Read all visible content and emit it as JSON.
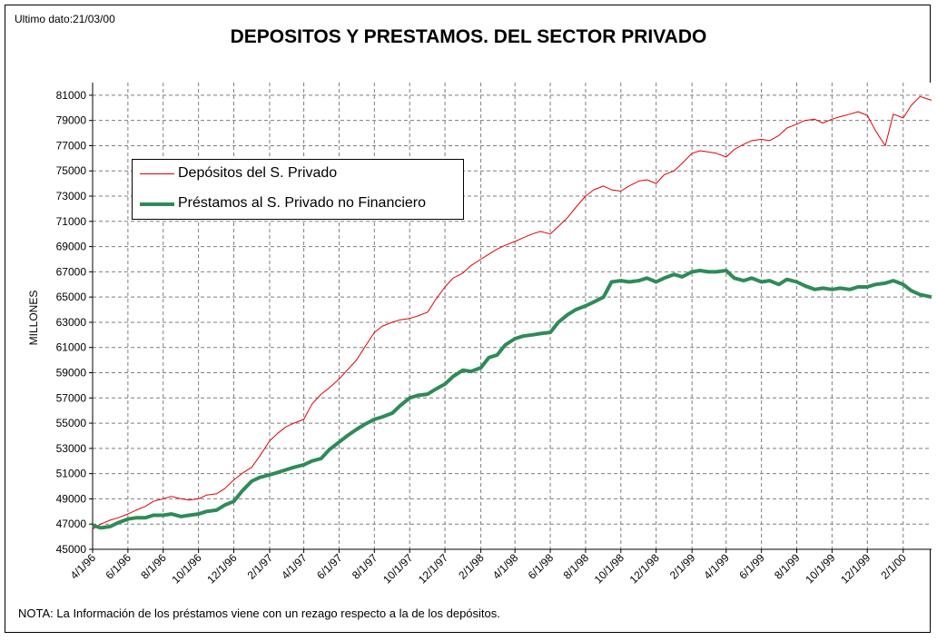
{
  "header": {
    "last_data": "Ultimo dato:21/03/00",
    "title": "DEPOSITOS Y PRESTAMOS. DEL SECTOR PRIVADO"
  },
  "footnote": "NOTA: La Información de los préstamos viene con un rezago respecto a la de los depósitos.",
  "chart_data": {
    "type": "line",
    "title": "DEPOSITOS Y PRESTAMOS. DEL SECTOR PRIVADO",
    "ylabel": "MILLONES",
    "xlabel": "",
    "ylim": [
      45000,
      82000
    ],
    "xlim": [
      "1996-04-01",
      "2000-03-21"
    ],
    "y_ticks": [
      45000,
      47000,
      49000,
      51000,
      53000,
      55000,
      57000,
      59000,
      61000,
      63000,
      65000,
      67000,
      69000,
      71000,
      73000,
      75000,
      77000,
      79000,
      81000
    ],
    "x_ticks": [
      {
        "date": "1996-04-01",
        "label": "4/1/96"
      },
      {
        "date": "1996-06-01",
        "label": "6/1/96"
      },
      {
        "date": "1996-08-01",
        "label": "8/1/96"
      },
      {
        "date": "1996-10-01",
        "label": "10/1/96"
      },
      {
        "date": "1996-12-01",
        "label": "12/1/96"
      },
      {
        "date": "1997-02-01",
        "label": "2/1/97"
      },
      {
        "date": "1997-04-01",
        "label": "4/1/97"
      },
      {
        "date": "1997-06-01",
        "label": "6/1/97"
      },
      {
        "date": "1997-08-01",
        "label": "8/1/97"
      },
      {
        "date": "1997-10-01",
        "label": "10/1/97"
      },
      {
        "date": "1997-12-01",
        "label": "12/1/97"
      },
      {
        "date": "1998-02-01",
        "label": "2/1/98"
      },
      {
        "date": "1998-04-01",
        "label": "4/1/98"
      },
      {
        "date": "1998-06-01",
        "label": "6/1/98"
      },
      {
        "date": "1998-08-01",
        "label": "8/1/98"
      },
      {
        "date": "1998-10-01",
        "label": "10/1/98"
      },
      {
        "date": "1998-12-01",
        "label": "12/1/98"
      },
      {
        "date": "1999-02-01",
        "label": "2/1/99"
      },
      {
        "date": "1999-04-01",
        "label": "4/1/99"
      },
      {
        "date": "1999-06-01",
        "label": "6/1/99"
      },
      {
        "date": "1999-08-01",
        "label": "8/1/99"
      },
      {
        "date": "1999-10-01",
        "label": "10/1/99"
      },
      {
        "date": "1999-12-01",
        "label": "12/1/99"
      },
      {
        "date": "2000-02-01",
        "label": "2/1/00"
      }
    ],
    "grid": true,
    "legend_position": "upper-left",
    "series": [
      {
        "name": "Depósitos del S. Privado",
        "color": "#e00000",
        "points": [
          [
            "1996-04-01",
            46600
          ],
          [
            "1996-04-15",
            47000
          ],
          [
            "1996-05-01",
            47300
          ],
          [
            "1996-05-15",
            47500
          ],
          [
            "1996-06-01",
            47800
          ],
          [
            "1996-06-15",
            48100
          ],
          [
            "1996-07-01",
            48400
          ],
          [
            "1996-07-15",
            48800
          ],
          [
            "1996-08-01",
            49000
          ],
          [
            "1996-08-15",
            49200
          ],
          [
            "1996-09-01",
            49000
          ],
          [
            "1996-09-15",
            48900
          ],
          [
            "1996-10-01",
            49000
          ],
          [
            "1996-10-15",
            49300
          ],
          [
            "1996-11-01",
            49400
          ],
          [
            "1996-11-15",
            49800
          ],
          [
            "1996-12-01",
            50500
          ],
          [
            "1996-12-15",
            51000
          ],
          [
            "1997-01-01",
            51500
          ],
          [
            "1997-01-15",
            52400
          ],
          [
            "1997-02-01",
            53600
          ],
          [
            "1997-02-15",
            54200
          ],
          [
            "1997-03-01",
            54700
          ],
          [
            "1997-03-15",
            55000
          ],
          [
            "1997-04-01",
            55300
          ],
          [
            "1997-04-15",
            56500
          ],
          [
            "1997-05-01",
            57300
          ],
          [
            "1997-05-15",
            57800
          ],
          [
            "1997-06-01",
            58500
          ],
          [
            "1997-06-15",
            59200
          ],
          [
            "1997-07-01",
            60000
          ],
          [
            "1997-07-15",
            61000
          ],
          [
            "1997-08-01",
            62200
          ],
          [
            "1997-08-15",
            62700
          ],
          [
            "1997-09-01",
            63000
          ],
          [
            "1997-09-15",
            63200
          ],
          [
            "1997-10-01",
            63300
          ],
          [
            "1997-10-15",
            63500
          ],
          [
            "1997-11-01",
            63800
          ],
          [
            "1997-11-15",
            64800
          ],
          [
            "1997-12-01",
            65800
          ],
          [
            "1997-12-15",
            66500
          ],
          [
            "1998-01-01",
            66900
          ],
          [
            "1998-01-15",
            67500
          ],
          [
            "1998-02-01",
            68000
          ],
          [
            "1998-02-15",
            68400
          ],
          [
            "1998-03-01",
            68800
          ],
          [
            "1998-03-15",
            69100
          ],
          [
            "1998-04-01",
            69400
          ],
          [
            "1998-04-15",
            69700
          ],
          [
            "1998-05-01",
            70000
          ],
          [
            "1998-05-15",
            70200
          ],
          [
            "1998-06-01",
            70000
          ],
          [
            "1998-06-15",
            70600
          ],
          [
            "1998-07-01",
            71300
          ],
          [
            "1998-07-15",
            72100
          ],
          [
            "1998-08-01",
            73000
          ],
          [
            "1998-08-15",
            73500
          ],
          [
            "1998-09-01",
            73800
          ],
          [
            "1998-09-15",
            73500
          ],
          [
            "1998-10-01",
            73400
          ],
          [
            "1998-10-15",
            73800
          ],
          [
            "1998-11-01",
            74200
          ],
          [
            "1998-11-15",
            74300
          ],
          [
            "1998-12-01",
            74000
          ],
          [
            "1998-12-15",
            74700
          ],
          [
            "1999-01-01",
            75000
          ],
          [
            "1999-01-15",
            75600
          ],
          [
            "1999-02-01",
            76400
          ],
          [
            "1999-02-15",
            76600
          ],
          [
            "1999-03-01",
            76500
          ],
          [
            "1999-03-15",
            76400
          ],
          [
            "1999-04-01",
            76100
          ],
          [
            "1999-04-15",
            76700
          ],
          [
            "1999-05-01",
            77100
          ],
          [
            "1999-05-15",
            77400
          ],
          [
            "1999-06-01",
            77500
          ],
          [
            "1999-06-15",
            77400
          ],
          [
            "1999-07-01",
            77800
          ],
          [
            "1999-07-15",
            78400
          ],
          [
            "1999-08-01",
            78700
          ],
          [
            "1999-08-15",
            79000
          ],
          [
            "1999-09-01",
            79100
          ],
          [
            "1999-09-15",
            78800
          ],
          [
            "1999-10-01",
            79100
          ],
          [
            "1999-10-15",
            79300
          ],
          [
            "1999-11-01",
            79500
          ],
          [
            "1999-11-15",
            79700
          ],
          [
            "1999-12-01",
            79400
          ],
          [
            "1999-12-15",
            78200
          ],
          [
            "2000-01-01",
            77000
          ],
          [
            "2000-01-15",
            79500
          ],
          [
            "2000-02-01",
            79200
          ],
          [
            "2000-02-15",
            80200
          ],
          [
            "2000-03-01",
            80900
          ],
          [
            "2000-03-21",
            80600
          ]
        ]
      },
      {
        "name": "Préstamos al S. Privado no Financiero",
        "color": "#2e8b57",
        "points": [
          [
            "1996-04-01",
            46900
          ],
          [
            "1996-04-15",
            46700
          ],
          [
            "1996-05-01",
            46800
          ],
          [
            "1996-05-15",
            47100
          ],
          [
            "1996-06-01",
            47400
          ],
          [
            "1996-06-15",
            47500
          ],
          [
            "1996-07-01",
            47500
          ],
          [
            "1996-07-15",
            47700
          ],
          [
            "1996-08-01",
            47700
          ],
          [
            "1996-08-15",
            47800
          ],
          [
            "1996-09-01",
            47600
          ],
          [
            "1996-09-15",
            47700
          ],
          [
            "1996-10-01",
            47800
          ],
          [
            "1996-10-15",
            48000
          ],
          [
            "1996-11-01",
            48100
          ],
          [
            "1996-11-15",
            48500
          ],
          [
            "1996-12-01",
            48800
          ],
          [
            "1996-12-15",
            49600
          ],
          [
            "1997-01-01",
            50400
          ],
          [
            "1997-01-15",
            50700
          ],
          [
            "1997-02-01",
            50900
          ],
          [
            "1997-02-15",
            51100
          ],
          [
            "1997-03-01",
            51300
          ],
          [
            "1997-03-15",
            51500
          ],
          [
            "1997-04-01",
            51700
          ],
          [
            "1997-04-15",
            52000
          ],
          [
            "1997-05-01",
            52200
          ],
          [
            "1997-05-15",
            52900
          ],
          [
            "1997-06-01",
            53500
          ],
          [
            "1997-06-15",
            54000
          ],
          [
            "1997-07-01",
            54500
          ],
          [
            "1997-07-15",
            54900
          ],
          [
            "1997-08-01",
            55300
          ],
          [
            "1997-08-15",
            55500
          ],
          [
            "1997-09-01",
            55800
          ],
          [
            "1997-09-15",
            56400
          ],
          [
            "1997-10-01",
            57000
          ],
          [
            "1997-10-15",
            57200
          ],
          [
            "1997-11-01",
            57300
          ],
          [
            "1997-11-15",
            57700
          ],
          [
            "1997-12-01",
            58100
          ],
          [
            "1997-12-15",
            58700
          ],
          [
            "1998-01-01",
            59200
          ],
          [
            "1998-01-15",
            59100
          ],
          [
            "1998-02-01",
            59400
          ],
          [
            "1998-02-15",
            60200
          ],
          [
            "1998-03-01",
            60400
          ],
          [
            "1998-03-15",
            61200
          ],
          [
            "1998-04-01",
            61700
          ],
          [
            "1998-04-15",
            61900
          ],
          [
            "1998-05-01",
            62000
          ],
          [
            "1998-05-15",
            62100
          ],
          [
            "1998-06-01",
            62200
          ],
          [
            "1998-06-15",
            63000
          ],
          [
            "1998-07-01",
            63600
          ],
          [
            "1998-07-15",
            64000
          ],
          [
            "1998-08-01",
            64300
          ],
          [
            "1998-08-15",
            64600
          ],
          [
            "1998-09-01",
            65000
          ],
          [
            "1998-09-15",
            66200
          ],
          [
            "1998-10-01",
            66300
          ],
          [
            "1998-10-15",
            66200
          ],
          [
            "1998-11-01",
            66300
          ],
          [
            "1998-11-15",
            66500
          ],
          [
            "1998-12-01",
            66200
          ],
          [
            "1998-12-15",
            66500
          ],
          [
            "1999-01-01",
            66800
          ],
          [
            "1999-01-15",
            66600
          ],
          [
            "1999-02-01",
            67000
          ],
          [
            "1999-02-15",
            67100
          ],
          [
            "1999-03-01",
            67000
          ],
          [
            "1999-03-15",
            67000
          ],
          [
            "1999-04-01",
            67100
          ],
          [
            "1999-04-15",
            66500
          ],
          [
            "1999-05-01",
            66300
          ],
          [
            "1999-05-15",
            66500
          ],
          [
            "1999-06-01",
            66200
          ],
          [
            "1999-06-15",
            66300
          ],
          [
            "1999-07-01",
            66000
          ],
          [
            "1999-07-15",
            66400
          ],
          [
            "1999-08-01",
            66200
          ],
          [
            "1999-08-15",
            65900
          ],
          [
            "1999-09-01",
            65600
          ],
          [
            "1999-09-15",
            65700
          ],
          [
            "1999-10-01",
            65600
          ],
          [
            "1999-10-15",
            65700
          ],
          [
            "1999-11-01",
            65600
          ],
          [
            "1999-11-15",
            65800
          ],
          [
            "1999-12-01",
            65800
          ],
          [
            "1999-12-15",
            66000
          ],
          [
            "2000-01-01",
            66100
          ],
          [
            "2000-01-15",
            66300
          ],
          [
            "2000-02-01",
            66000
          ],
          [
            "2000-02-15",
            65500
          ],
          [
            "2000-03-01",
            65200
          ],
          [
            "2000-03-21",
            65000
          ]
        ]
      }
    ]
  }
}
